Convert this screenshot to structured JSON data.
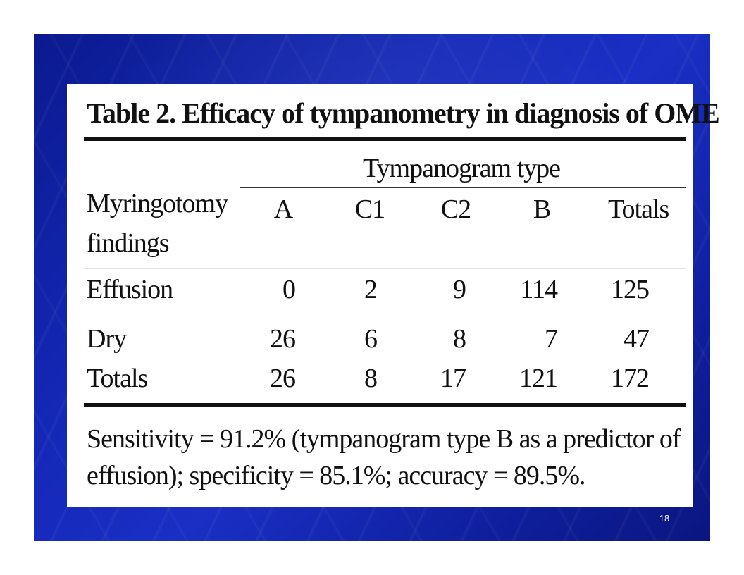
{
  "table": {
    "caption": "Table 2. Efficacy of tympanometry in diagnosis of OME",
    "group_header": "Tympanogram type",
    "row_header_line1": "Myringotomy",
    "row_header_line2": "findings",
    "columns": [
      "A",
      "C1",
      "C2",
      "B",
      "Totals"
    ],
    "rows": [
      {
        "label": "Effusion",
        "values": [
          "0",
          "2",
          "9",
          "114",
          "125"
        ]
      },
      {
        "label": "Dry",
        "values": [
          "26",
          "6",
          "8",
          "7",
          "47"
        ]
      },
      {
        "label": "Totals",
        "values": [
          "26",
          "8",
          "17",
          "121",
          "172"
        ]
      }
    ],
    "footnote": "Sensitivity = 91.2% (tympanogram type B as a predictor of effusion); specificity = 85.1%; accuracy = 89.5%."
  },
  "slide": {
    "number": "18",
    "background_color": "#1428b8"
  }
}
